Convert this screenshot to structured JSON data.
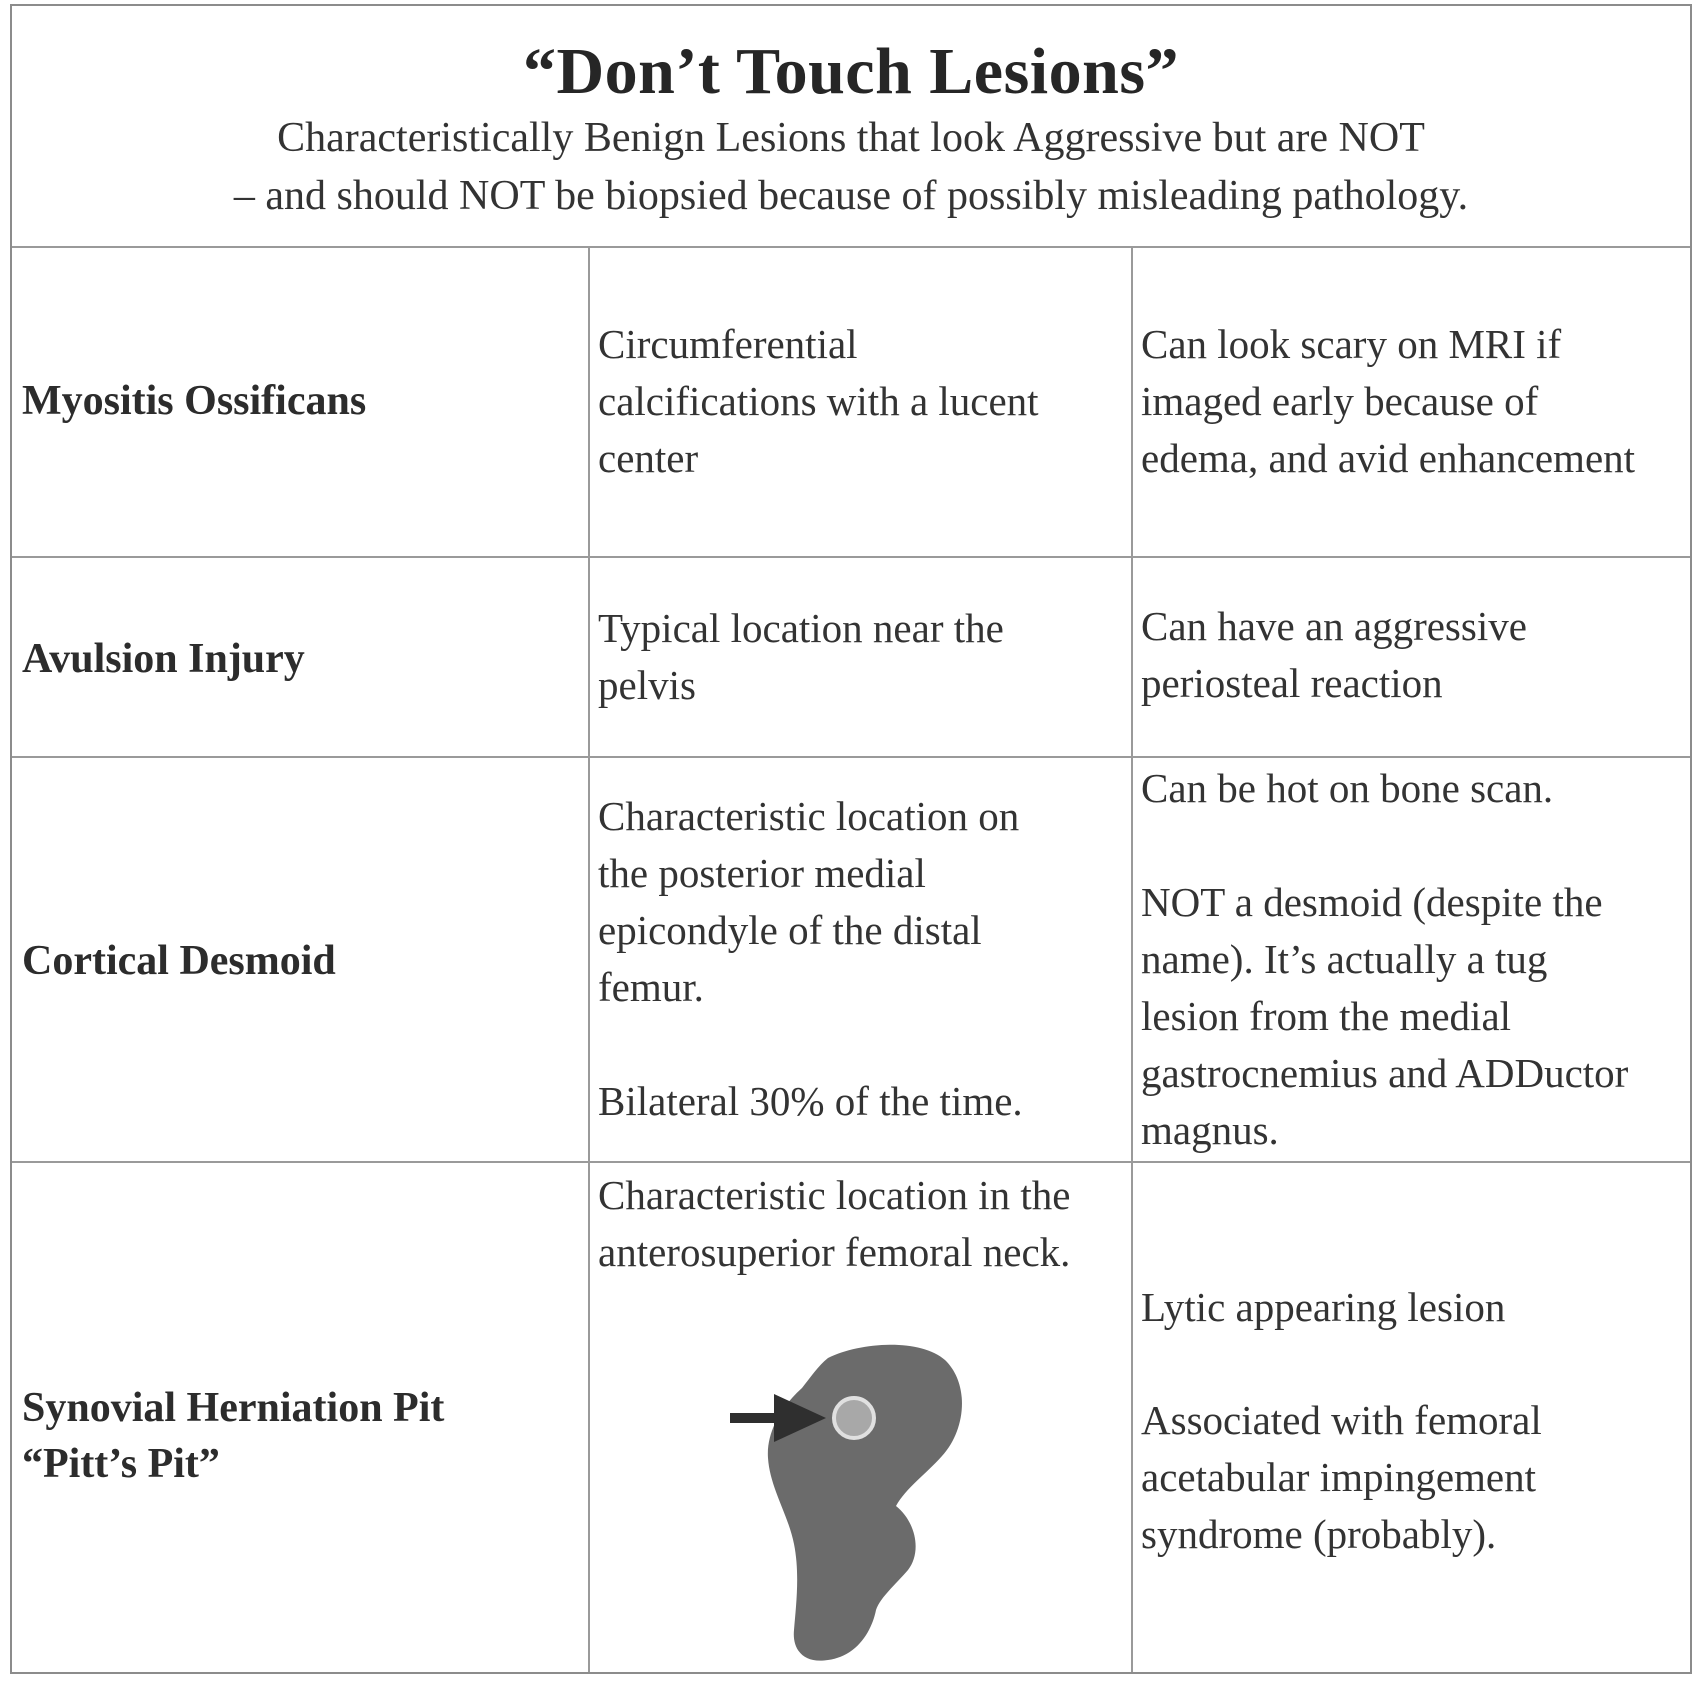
{
  "header": {
    "title": "“Don’t Touch Lesions”",
    "subtitle_line1": "Characteristically Benign Lesions that look Aggressive but are NOT",
    "subtitle_line2": "– and should NOT be biopsied because of possibly misleading pathology."
  },
  "rows": [
    {
      "name": "Myositis Ossificans",
      "description": [
        "Circumferential",
        "calcifications with a lucent",
        "center"
      ],
      "notes": [
        "Can look scary on MRI if",
        "imaged early because of",
        "edema, and avid enhancement"
      ]
    },
    {
      "name": "Avulsion Injury",
      "description": [
        "Typical location near the",
        "pelvis"
      ],
      "notes": [
        "Can have an aggressive",
        "periosteal reaction"
      ]
    },
    {
      "name": "Cortical Desmoid",
      "description": [
        "Characteristic location on",
        "the posterior medial",
        "epicondyle of the distal",
        "femur.",
        "",
        "Bilateral 30% of the time."
      ],
      "notes": [
        "Can be hot on bone scan.",
        "",
        "NOT a desmoid (despite the",
        "name).  It’s actually a tug",
        "lesion from the medial",
        "gastrocnemius and ADDuctor",
        "magnus."
      ]
    },
    {
      "name": "Synovial Herniation Pit",
      "name_line2": "“Pitt’s Pit”",
      "description": [
        "Characteristic location in the",
        "anterosuperior femoral neck."
      ],
      "notes": [
        "Lytic appearing lesion",
        "",
        "Associated with femoral",
        "acetabular impingement",
        "syndrome (probably)."
      ]
    }
  ],
  "colors": {
    "femur_fill": "#6b6b6b",
    "pit_fill": "#a8a8a8",
    "pit_ring": "#e0e0e0",
    "arrow": "#2f2f2f",
    "border": "#9a9a9a"
  },
  "icons": {
    "femur": "femur-diagram-icon",
    "arrow": "arrow-right-icon"
  }
}
